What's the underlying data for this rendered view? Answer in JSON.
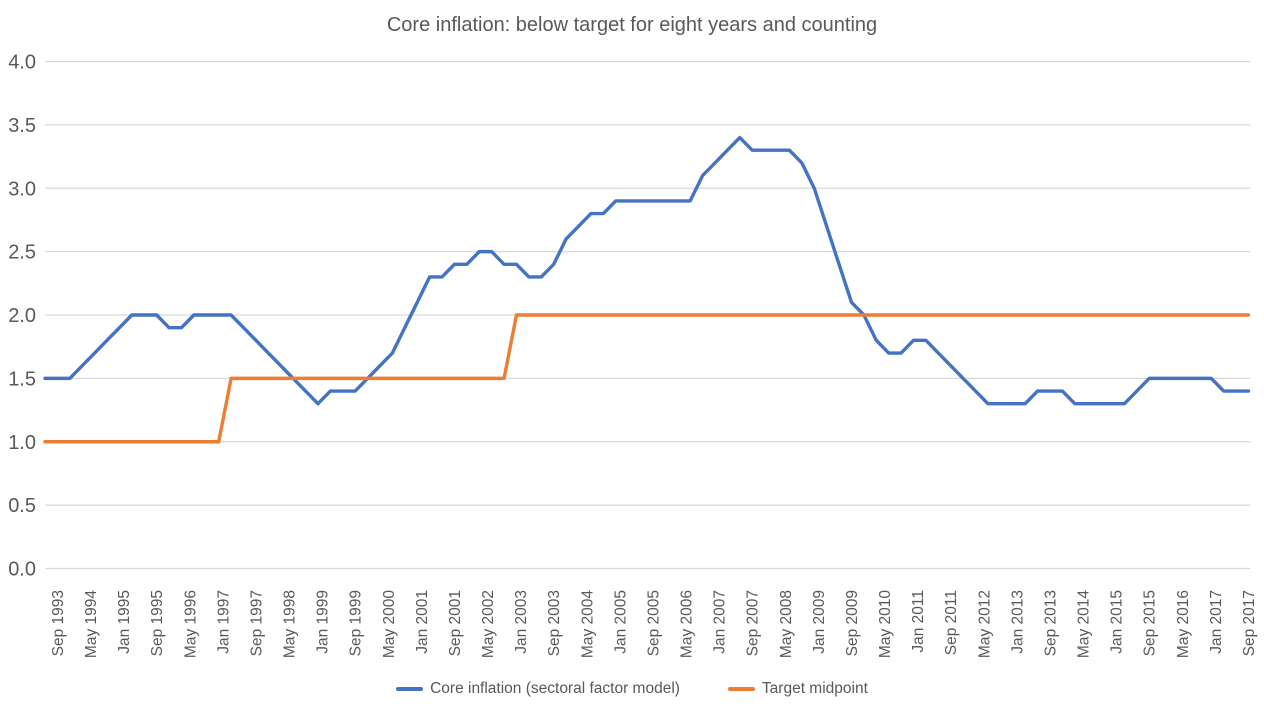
{
  "chart_data": {
    "type": "line",
    "title": "Core inflation: below target for eight years and counting",
    "legend_position": "bottom",
    "grid": true,
    "colors": {
      "background": "#FFFFFF",
      "gridline": "#D9D9D9",
      "axis_text": "#595959",
      "title_text": "#595959"
    },
    "y_axis": {
      "min": 0.0,
      "max": 4.0,
      "step": 0.5,
      "tick_labels": [
        "4.0",
        "3.5",
        "3.0",
        "2.5",
        "2.0",
        "1.5",
        "1.0",
        "0.5",
        "0.0"
      ]
    },
    "x_axis": {
      "points_start": "Jun 1993",
      "points_end": "Sep 2017",
      "points_frequency": "quarterly",
      "tick_interval_months": 8,
      "tick_label_rotation_degrees": 90,
      "tick_labels": [
        "Sep 1993",
        "May 1994",
        "Jan 1995",
        "Sep 1995",
        "May 1996",
        "Jan 1997",
        "Sep 1997",
        "May 1998",
        "Jan 1999",
        "Sep 1999",
        "May 2000",
        "Jan 2001",
        "Sep 2001",
        "May 2002",
        "Jan 2003",
        "Sep 2003",
        "May 2004",
        "Jan 2005",
        "Sep 2005",
        "May 2006",
        "Jan 2007",
        "Sep 2007",
        "May 2008",
        "Jan 2009",
        "Sep 2009",
        "May 2010",
        "Jan 2011",
        "Sep 2011",
        "May 2012",
        "Jan 2013",
        "Sep 2013",
        "May 2014",
        "Jan 2015",
        "Sep 2015",
        "May 2016",
        "Jan 2017",
        "Sep 2017"
      ]
    },
    "series": [
      {
        "name": "Core inflation (sectoral factor model)",
        "color": "#4472C4",
        "line_width": 3.4,
        "values": [
          1.5,
          1.5,
          1.5,
          1.6,
          1.7,
          1.8,
          1.9,
          2.0,
          2.0,
          2.0,
          1.9,
          1.9,
          2.0,
          2.0,
          2.0,
          2.0,
          1.9,
          1.8,
          1.7,
          1.6,
          1.5,
          1.4,
          1.3,
          1.4,
          1.4,
          1.4,
          1.5,
          1.6,
          1.7,
          1.9,
          2.1,
          2.3,
          2.3,
          2.4,
          2.4,
          2.5,
          2.5,
          2.4,
          2.4,
          2.3,
          2.3,
          2.4,
          2.6,
          2.7,
          2.8,
          2.8,
          2.9,
          2.9,
          2.9,
          2.9,
          2.9,
          2.9,
          2.9,
          3.1,
          3.2,
          3.3,
          3.4,
          3.3,
          3.3,
          3.3,
          3.3,
          3.2,
          3.0,
          2.7,
          2.4,
          2.1,
          2.0,
          1.8,
          1.7,
          1.7,
          1.8,
          1.8,
          1.7,
          1.6,
          1.5,
          1.4,
          1.3,
          1.3,
          1.3,
          1.3,
          1.4,
          1.4,
          1.4,
          1.3,
          1.3,
          1.3,
          1.3,
          1.3,
          1.4,
          1.5,
          1.5,
          1.5,
          1.5,
          1.5,
          1.5,
          1.4,
          1.4,
          1.4
        ]
      },
      {
        "name": "Target midpoint",
        "color": "#ED7D31",
        "line_width": 3.4,
        "values": [
          1.0,
          1.0,
          1.0,
          1.0,
          1.0,
          1.0,
          1.0,
          1.0,
          1.0,
          1.0,
          1.0,
          1.0,
          1.0,
          1.0,
          1.0,
          1.5,
          1.5,
          1.5,
          1.5,
          1.5,
          1.5,
          1.5,
          1.5,
          1.5,
          1.5,
          1.5,
          1.5,
          1.5,
          1.5,
          1.5,
          1.5,
          1.5,
          1.5,
          1.5,
          1.5,
          1.5,
          1.5,
          1.5,
          2.0,
          2.0,
          2.0,
          2.0,
          2.0,
          2.0,
          2.0,
          2.0,
          2.0,
          2.0,
          2.0,
          2.0,
          2.0,
          2.0,
          2.0,
          2.0,
          2.0,
          2.0,
          2.0,
          2.0,
          2.0,
          2.0,
          2.0,
          2.0,
          2.0,
          2.0,
          2.0,
          2.0,
          2.0,
          2.0,
          2.0,
          2.0,
          2.0,
          2.0,
          2.0,
          2.0,
          2.0,
          2.0,
          2.0,
          2.0,
          2.0,
          2.0,
          2.0,
          2.0,
          2.0,
          2.0,
          2.0,
          2.0,
          2.0,
          2.0,
          2.0,
          2.0,
          2.0,
          2.0,
          2.0,
          2.0,
          2.0,
          2.0,
          2.0,
          2.0
        ]
      }
    ]
  }
}
